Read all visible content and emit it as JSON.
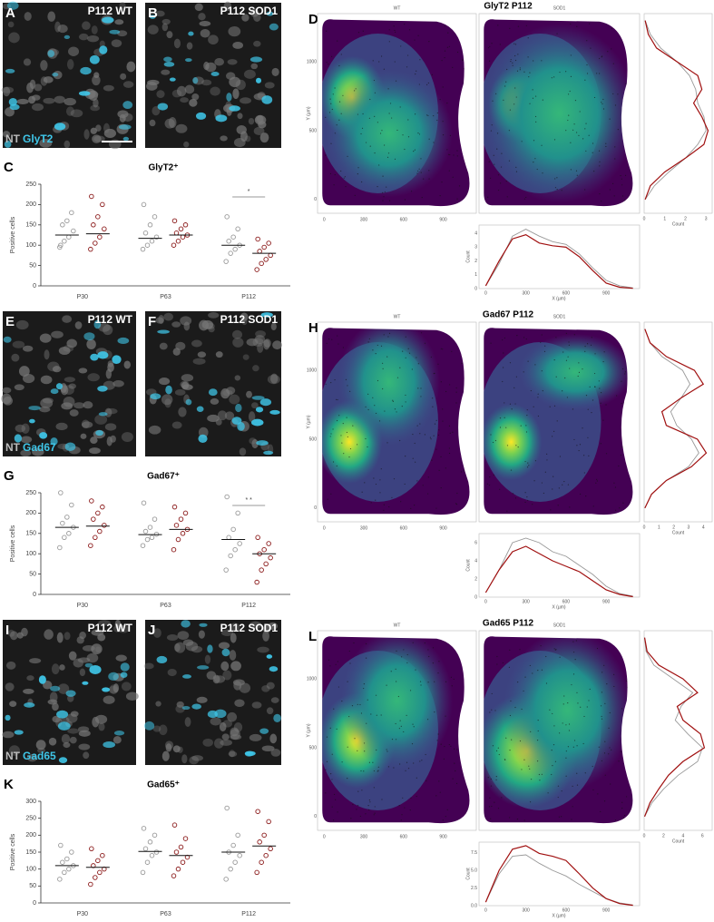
{
  "rows": [
    {
      "image_letters": [
        "A",
        "B"
      ],
      "image_titles": [
        "P112 WT",
        "P112 SOD1"
      ],
      "stain": [
        "NT",
        "GlyT2"
      ],
      "chart": {
        "letter": "C",
        "type": "scatter",
        "title": "GlyT2⁺",
        "y_label": "Positive cells",
        "categories": [
          "P30",
          "P63",
          "P112"
        ],
        "ylim": [
          0,
          250
        ],
        "yticks": [
          0,
          50,
          100,
          150,
          200,
          250
        ],
        "series": [
          {
            "color": "#9a9a9a",
            "values": [
              [
                95,
                110,
                120,
                135,
                150,
                160,
                180,
                100
              ],
              [
                90,
                100,
                110,
                120,
                130,
                150,
                170,
                200
              ],
              [
                60,
                80,
                90,
                100,
                110,
                120,
                140,
                170
              ]
            ],
            "means": [
              125,
              117,
              100
            ]
          },
          {
            "color": "#8b1a1a",
            "values": [
              [
                90,
                105,
                120,
                140,
                150,
                170,
                200,
                220
              ],
              [
                100,
                110,
                120,
                125,
                130,
                140,
                150,
                160
              ],
              [
                40,
                55,
                65,
                75,
                85,
                95,
                105,
                115
              ]
            ],
            "means": [
              128,
              125,
              80
            ]
          }
        ],
        "significance": {
          "category": 2,
          "label": "*"
        }
      },
      "density": {
        "letter": "D",
        "title": "GlyT2 P112",
        "panels": [
          "WT",
          "SOD1"
        ],
        "xlim": [
          -50,
          1150
        ],
        "ylim": [
          -100,
          1350
        ],
        "xticks": [
          0,
          300,
          600,
          900
        ],
        "yticks": [
          0,
          500,
          1000
        ],
        "x_label": "X (µm)",
        "y_label": "Y (µm)",
        "right": {
          "x_label": "Count",
          "xlim": [
            0,
            3.3
          ],
          "xticks": [
            0,
            1,
            2,
            3
          ],
          "y": [
            0,
            100,
            200,
            300,
            400,
            500,
            600,
            700,
            800,
            900,
            1000,
            1100,
            1200,
            1300
          ],
          "series": [
            {
              "color": "#999999",
              "values": [
                0.05,
                0.5,
                1.2,
                2.0,
                2.6,
                3.0,
                2.9,
                2.6,
                2.5,
                2.2,
                1.6,
                0.8,
                0.3,
                0.05
              ]
            },
            {
              "color": "#a01010",
              "values": [
                0.05,
                0.3,
                1.0,
                2.0,
                2.9,
                3.1,
                2.8,
                2.4,
                2.8,
                2.6,
                1.6,
                0.6,
                0.2,
                0.05
              ]
            }
          ]
        },
        "bottom": {
          "y_label": "Count",
          "ylim": [
            0,
            4.6
          ],
          "yticks": [
            0,
            1,
            2,
            3,
            4
          ],
          "x": [
            0,
            100,
            200,
            300,
            400,
            500,
            600,
            700,
            800,
            900,
            1000,
            1100
          ],
          "series": [
            {
              "color": "#999999",
              "values": [
                0.2,
                1.8,
                3.8,
                4.3,
                3.8,
                3.4,
                3.2,
                2.5,
                1.5,
                0.6,
                0.2,
                0.05
              ]
            },
            {
              "color": "#a01010",
              "values": [
                0.2,
                2.0,
                3.6,
                3.9,
                3.3,
                3.1,
                3.0,
                2.3,
                1.3,
                0.4,
                0.1,
                0.02
              ]
            }
          ]
        }
      }
    },
    {
      "image_letters": [
        "E",
        "F"
      ],
      "image_titles": [
        "P112 WT",
        "P112 SOD1"
      ],
      "stain": [
        "NT",
        "Gad67"
      ],
      "chart": {
        "letter": "G",
        "type": "scatter",
        "title": "Gad67⁺",
        "y_label": "Positive cells",
        "categories": [
          "P30",
          "P63",
          "P112"
        ],
        "ylim": [
          0,
          250
        ],
        "yticks": [
          0,
          50,
          100,
          150,
          200,
          250
        ],
        "series": [
          {
            "color": "#9a9a9a",
            "values": [
              [
                115,
                140,
                150,
                165,
                175,
                190,
                220,
                250
              ],
              [
                120,
                135,
                140,
                148,
                155,
                165,
                185,
                225
              ],
              [
                60,
                95,
                110,
                125,
                140,
                160,
                200,
                240
              ]
            ],
            "means": [
              165,
              147,
              135
            ]
          },
          {
            "color": "#8b1a1a",
            "values": [
              [
                120,
                140,
                155,
                170,
                185,
                200,
                215,
                230
              ],
              [
                110,
                135,
                150,
                160,
                170,
                185,
                200,
                215
              ],
              [
                30,
                60,
                75,
                90,
                100,
                110,
                125,
                140
              ]
            ],
            "means": [
              168,
              160,
              100
            ]
          }
        ],
        "significance": {
          "category": 2,
          "label": "* *"
        }
      },
      "density": {
        "letter": "H",
        "title": "Gad67 P112",
        "panels": [
          "WT",
          "SOD1"
        ],
        "xlim": [
          -50,
          1150
        ],
        "ylim": [
          -100,
          1350
        ],
        "xticks": [
          0,
          300,
          600,
          900
        ],
        "yticks": [
          0,
          500,
          1000
        ],
        "x_label": "X (µm)",
        "y_label": "Y (µm)",
        "right": {
          "x_label": "Count",
          "xlim": [
            0,
            4.6
          ],
          "xticks": [
            0,
            1,
            2,
            3,
            4
          ],
          "y": [
            0,
            100,
            200,
            300,
            400,
            500,
            600,
            700,
            800,
            900,
            1000,
            1100,
            1200,
            1300
          ],
          "series": [
            {
              "color": "#999999",
              "values": [
                0.05,
                0.5,
                1.5,
                3.0,
                3.7,
                3.2,
                2.2,
                1.8,
                2.5,
                3.1,
                2.6,
                1.2,
                0.4,
                0.05
              ]
            },
            {
              "color": "#a01010",
              "values": [
                0.05,
                0.5,
                1.5,
                3.2,
                4.2,
                3.6,
                1.5,
                1.2,
                2.5,
                4.0,
                3.4,
                1.5,
                0.4,
                0.05
              ]
            }
          ]
        },
        "bottom": {
          "y_label": "Count",
          "ylim": [
            0,
            7
          ],
          "yticks": [
            0,
            2,
            4,
            6
          ],
          "x": [
            0,
            100,
            200,
            300,
            400,
            500,
            600,
            700,
            800,
            900,
            1000,
            1100
          ],
          "series": [
            {
              "color": "#999999",
              "values": [
                0.5,
                3.0,
                6.0,
                6.5,
                6.0,
                5.0,
                4.5,
                3.5,
                2.5,
                1.2,
                0.4,
                0.1
              ]
            },
            {
              "color": "#a01010",
              "values": [
                0.5,
                3.0,
                5.0,
                5.6,
                4.8,
                4.0,
                3.4,
                2.8,
                1.8,
                0.8,
                0.3,
                0.05
              ]
            }
          ]
        }
      }
    },
    {
      "image_letters": [
        "I",
        "J"
      ],
      "image_titles": [
        "P112 WT",
        "P112 SOD1"
      ],
      "stain": [
        "NT",
        "Gad65"
      ],
      "chart": {
        "letter": "K",
        "type": "scatter",
        "title": "Gad65⁺",
        "y_label": "Positive cells",
        "categories": [
          "P30",
          "P63",
          "P112"
        ],
        "ylim": [
          0,
          300
        ],
        "yticks": [
          0,
          50,
          100,
          150,
          200,
          250,
          300
        ],
        "series": [
          {
            "color": "#9a9a9a",
            "values": [
              [
                70,
                90,
                100,
                110,
                120,
                130,
                150,
                170
              ],
              [
                90,
                120,
                140,
                150,
                160,
                180,
                200,
                220
              ],
              [
                70,
                100,
                120,
                140,
                150,
                170,
                200,
                280
              ]
            ],
            "means": [
              110,
              152,
              150
            ]
          },
          {
            "color": "#8b1a1a",
            "values": [
              [
                55,
                75,
                90,
                100,
                110,
                125,
                140,
                160
              ],
              [
                80,
                100,
                120,
                135,
                150,
                165,
                190,
                230
              ],
              [
                90,
                120,
                140,
                160,
                180,
                200,
                240,
                270
              ]
            ],
            "means": [
              105,
              140,
              168
            ]
          }
        ]
      },
      "density": {
        "letter": "L",
        "title": "Gad65 P112",
        "panels": [
          "WT",
          "SOD1"
        ],
        "xlim": [
          -50,
          1150
        ],
        "ylim": [
          -100,
          1350
        ],
        "xticks": [
          0,
          300,
          600,
          900
        ],
        "yticks": [
          0,
          500,
          1000
        ],
        "x_label": "X (µm)",
        "y_label": "Y (µm)",
        "right": {
          "x_label": "Count",
          "xlim": [
            0,
            7
          ],
          "xticks": [
            0,
            2,
            4,
            6
          ],
          "y": [
            0,
            100,
            200,
            300,
            400,
            500,
            600,
            700,
            800,
            900,
            1000,
            1100,
            1200,
            1300
          ],
          "series": [
            {
              "color": "#999999",
              "values": [
                0.05,
                0.8,
                2.0,
                3.5,
                5.5,
                6.0,
                4.5,
                3.2,
                3.8,
                5.0,
                3.0,
                1.0,
                0.2,
                0.05
              ]
            },
            {
              "color": "#a01010",
              "values": [
                0.05,
                0.6,
                1.5,
                2.5,
                4.0,
                6.2,
                5.8,
                4.0,
                3.4,
                5.5,
                4.0,
                1.5,
                0.3,
                0.05
              ]
            }
          ]
        },
        "bottom": {
          "y_label": "Count",
          "ylim": [
            0,
            9
          ],
          "yticks": [
            {
              "value": 0,
              "label": "0.0"
            },
            {
              "value": 2.5,
              "label": "2.5"
            },
            {
              "value": 5,
              "label": "5.0"
            },
            {
              "value": 7.5,
              "label": "7.5"
            }
          ],
          "x": [
            0,
            100,
            200,
            300,
            400,
            500,
            600,
            700,
            800,
            900,
            1000,
            1100
          ],
          "series": [
            {
              "color": "#999999",
              "values": [
                0.5,
                4.5,
                7.0,
                7.2,
                6.0,
                5.0,
                4.2,
                3.0,
                2.0,
                1.0,
                0.4,
                0.1
              ]
            },
            {
              "color": "#a01010",
              "values": [
                0.5,
                5.0,
                8.0,
                8.5,
                7.4,
                7.0,
                6.4,
                4.5,
                2.5,
                1.0,
                0.3,
                0.05
              ]
            }
          ]
        }
      }
    }
  ]
}
